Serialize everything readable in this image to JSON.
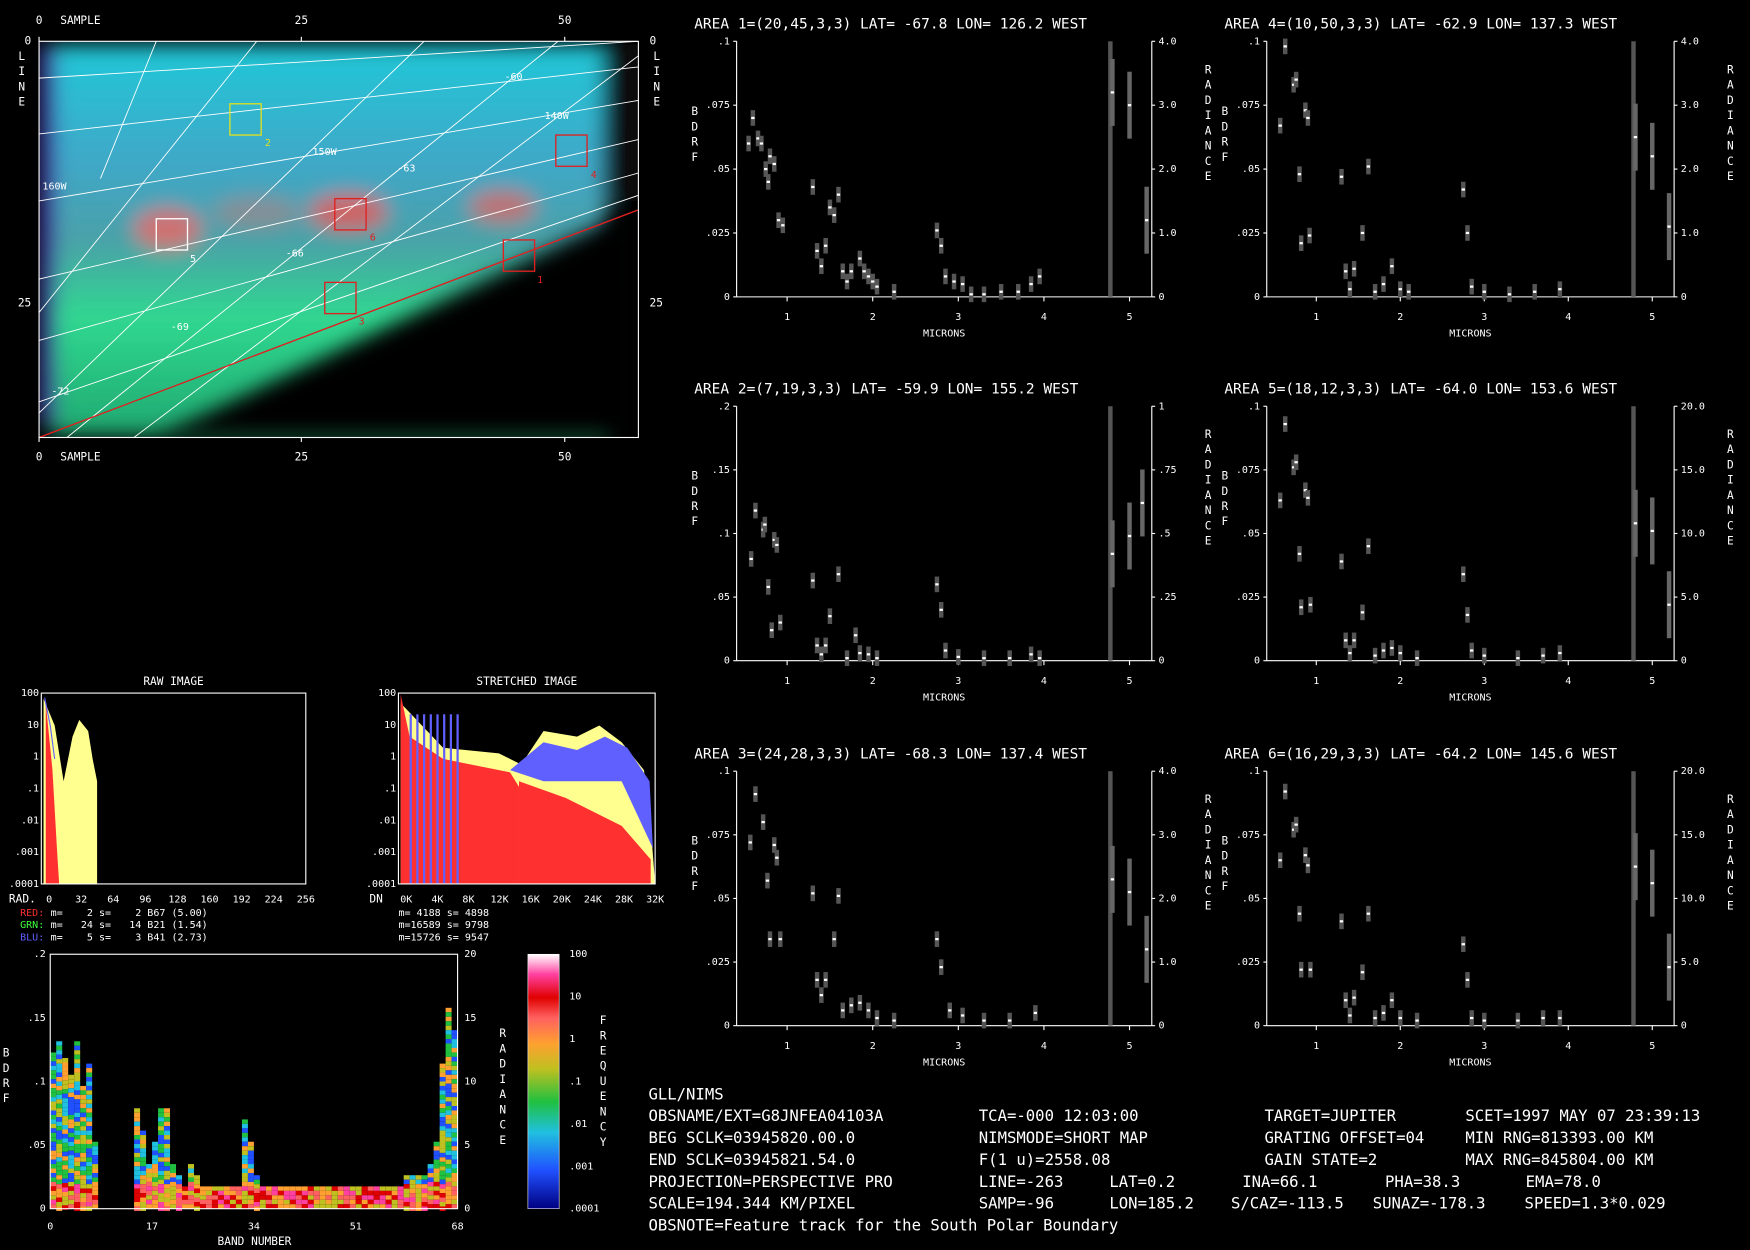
{
  "image_panel": {
    "axis_top": "SAMPLE",
    "axis_bottom": "SAMPLE",
    "sample_ticks": [
      "0",
      "25",
      "50"
    ],
    "line_label": "LINE",
    "line_ticks": [
      "0",
      "25"
    ],
    "map_labels": [
      "-60",
      "140W",
      "150W",
      "-63",
      "160W",
      "-66",
      "-69",
      "-72"
    ],
    "boxes": [
      "1",
      "2",
      "3",
      "4",
      "5",
      "6"
    ]
  },
  "histograms": [
    {
      "title": "RAW IMAGE",
      "y_ticks": [
        "100",
        "10",
        "1",
        ".1",
        ".01",
        ".001",
        ".0001"
      ],
      "x_label": "RAD.",
      "x_ticks": [
        "0",
        "32",
        "64",
        "96",
        "128",
        "160",
        "192",
        "224",
        "256"
      ],
      "stats": [
        {
          "channel": "RED:",
          "text": " m=    2 s=    2 B67 (5.00)"
        },
        {
          "channel": "GRN:",
          "text": " m=   24 s=   14 B21 (1.54)"
        },
        {
          "channel": "BLU:",
          "text": " m=    5 s=    3 B41 (2.73)"
        }
      ]
    },
    {
      "title": "STRETCHED IMAGE",
      "y_ticks": [
        "100",
        "10",
        "1",
        ".1",
        ".01",
        ".001",
        ".0001"
      ],
      "x_label": "DN",
      "x_ticks": [
        "0K",
        "4K",
        "8K",
        "12K",
        "16K",
        "20K",
        "24K",
        "28K",
        "32K"
      ],
      "stats": [
        {
          "channel": "",
          "text": "m= 4188 s= 4898"
        },
        {
          "channel": "",
          "text": "m=16589 s= 9798"
        },
        {
          "channel": "",
          "text": "m=15726 s= 9547"
        }
      ]
    }
  ],
  "band_plot": {
    "y_label": "BDRF",
    "y2_label": "RADIANCE",
    "x_label": "BAND NUMBER",
    "y_ticks": [
      ".2",
      ".15",
      ".1",
      ".05",
      "0"
    ],
    "y2_ticks": [
      "20",
      "15",
      "10",
      "5",
      "0"
    ],
    "x_ticks": [
      "0",
      "17",
      "34",
      "51",
      "68"
    ],
    "colorbar_ticks": [
      "100",
      "10",
      "1",
      ".1",
      ".01",
      ".001",
      ".0001"
    ],
    "colorbar_label": "FREQUENCY"
  },
  "areas": [
    {
      "title": "AREA 1=(20,45,3,3) LAT= -67.8 LON= 126.2 WEST",
      "y_ticks": [
        ".1",
        ".075",
        ".05",
        ".025",
        "0"
      ],
      "y2_ticks": [
        "4.0",
        "3.0",
        "2.0",
        "1.0",
        "0"
      ],
      "ylim": [
        0,
        0.1
      ],
      "y2lim": [
        0,
        4
      ],
      "points": [
        [
          0.55,
          0.06
        ],
        [
          0.6,
          0.07
        ],
        [
          0.66,
          0.062
        ],
        [
          0.7,
          0.06
        ],
        [
          0.75,
          0.05
        ],
        [
          0.78,
          0.045
        ],
        [
          0.8,
          0.055
        ],
        [
          0.85,
          0.052
        ],
        [
          0.9,
          0.03
        ],
        [
          0.95,
          0.028
        ],
        [
          1.3,
          0.043
        ],
        [
          1.35,
          0.018
        ],
        [
          1.4,
          0.012
        ],
        [
          1.45,
          0.02
        ],
        [
          1.5,
          0.035
        ],
        [
          1.55,
          0.032
        ],
        [
          1.6,
          0.04
        ],
        [
          1.65,
          0.01
        ],
        [
          1.7,
          0.006
        ],
        [
          1.75,
          0.01
        ],
        [
          1.85,
          0.015
        ],
        [
          1.9,
          0.01
        ],
        [
          1.95,
          0.008
        ],
        [
          2.0,
          0.006
        ],
        [
          2.05,
          0.004
        ],
        [
          2.25,
          0.002
        ],
        [
          2.75,
          0.026
        ],
        [
          2.8,
          0.02
        ],
        [
          2.85,
          0.008
        ],
        [
          2.95,
          0.006
        ],
        [
          3.05,
          0.005
        ],
        [
          3.15,
          0.001
        ],
        [
          3.3,
          0.001
        ],
        [
          3.5,
          0.002
        ],
        [
          3.7,
          0.002
        ],
        [
          3.85,
          0.005
        ],
        [
          3.95,
          0.008
        ]
      ],
      "radiance": [
        [
          4.8,
          3.2
        ],
        [
          5.0,
          3.0
        ],
        [
          5.2,
          1.2
        ]
      ]
    },
    {
      "title": "AREA 2=(7,19,3,3) LAT= -59.9 LON= 155.2 WEST",
      "y_ticks": [
        ".2",
        ".15",
        ".1",
        ".05",
        "0"
      ],
      "y2_ticks": [
        "1",
        ".75",
        ".5",
        ".25",
        "0"
      ],
      "ylim": [
        0,
        0.2
      ],
      "y2lim": [
        0,
        1
      ],
      "points": [
        [
          0.58,
          0.08
        ],
        [
          0.63,
          0.118
        ],
        [
          0.72,
          0.103
        ],
        [
          0.74,
          0.107
        ],
        [
          0.78,
          0.058
        ],
        [
          0.82,
          0.024
        ],
        [
          0.85,
          0.095
        ],
        [
          0.88,
          0.091
        ],
        [
          0.92,
          0.03
        ],
        [
          1.3,
          0.063
        ],
        [
          1.35,
          0.012
        ],
        [
          1.4,
          0.005
        ],
        [
          1.45,
          0.012
        ],
        [
          1.5,
          0.035
        ],
        [
          1.6,
          0.068
        ],
        [
          1.7,
          0.002
        ],
        [
          1.8,
          0.02
        ],
        [
          1.85,
          0.006
        ],
        [
          1.95,
          0.005
        ],
        [
          2.05,
          0.002
        ],
        [
          2.75,
          0.06
        ],
        [
          2.8,
          0.04
        ],
        [
          2.85,
          0.008
        ],
        [
          3.0,
          0.003
        ],
        [
          3.3,
          0.002
        ],
        [
          3.6,
          0.002
        ],
        [
          3.85,
          0.005
        ],
        [
          3.95,
          0.002
        ]
      ],
      "radiance": [
        [
          4.8,
          0.42
        ],
        [
          5.0,
          0.49
        ],
        [
          5.15,
          0.62
        ]
      ]
    },
    {
      "title": "AREA 3=(24,28,3,3) LAT= -68.3 LON= 137.4 WEST",
      "y_ticks": [
        ".1",
        ".075",
        ".05",
        ".025",
        "0"
      ],
      "y2_ticks": [
        "4.0",
        "3.0",
        "2.0",
        "1.0",
        "0"
      ],
      "ylim": [
        0,
        0.1
      ],
      "y2lim": [
        0,
        4
      ],
      "points": [
        [
          0.57,
          0.072
        ],
        [
          0.63,
          0.091
        ],
        [
          0.72,
          0.08
        ],
        [
          0.77,
          0.057
        ],
        [
          0.8,
          0.034
        ],
        [
          0.85,
          0.071
        ],
        [
          0.88,
          0.066
        ],
        [
          0.92,
          0.034
        ],
        [
          1.3,
          0.052
        ],
        [
          1.35,
          0.018
        ],
        [
          1.4,
          0.012
        ],
        [
          1.45,
          0.018
        ],
        [
          1.55,
          0.034
        ],
        [
          1.6,
          0.051
        ],
        [
          1.65,
          0.006
        ],
        [
          1.75,
          0.008
        ],
        [
          1.85,
          0.009
        ],
        [
          1.95,
          0.006
        ],
        [
          2.05,
          0.003
        ],
        [
          2.25,
          0.002
        ],
        [
          2.75,
          0.034
        ],
        [
          2.8,
          0.023
        ],
        [
          2.9,
          0.006
        ],
        [
          3.05,
          0.004
        ],
        [
          3.3,
          0.002
        ],
        [
          3.6,
          0.002
        ],
        [
          3.9,
          0.005
        ]
      ],
      "radiance": [
        [
          4.8,
          2.3
        ],
        [
          5.0,
          2.1
        ],
        [
          5.2,
          1.2
        ]
      ]
    },
    {
      "title": "AREA 4=(10,50,3,3) LAT= -62.9 LON= 137.3 WEST",
      "y_ticks": [
        ".1",
        ".075",
        ".05",
        ".025",
        "0"
      ],
      "y2_ticks": [
        "4.0",
        "3.0",
        "2.0",
        "1.0",
        "0"
      ],
      "ylim": [
        0,
        0.1
      ],
      "y2lim": [
        0,
        4
      ],
      "points": [
        [
          0.57,
          0.067
        ],
        [
          0.63,
          0.098
        ],
        [
          0.73,
          0.083
        ],
        [
          0.76,
          0.085
        ],
        [
          0.8,
          0.048
        ],
        [
          0.82,
          0.021
        ],
        [
          0.87,
          0.073
        ],
        [
          0.9,
          0.07
        ],
        [
          0.92,
          0.024
        ],
        [
          1.3,
          0.047
        ],
        [
          1.35,
          0.01
        ],
        [
          1.4,
          0.003
        ],
        [
          1.45,
          0.011
        ],
        [
          1.55,
          0.025
        ],
        [
          1.62,
          0.051
        ],
        [
          1.7,
          0.002
        ],
        [
          1.8,
          0.005
        ],
        [
          1.9,
          0.012
        ],
        [
          2.0,
          0.003
        ],
        [
          2.1,
          0.002
        ],
        [
          2.75,
          0.042
        ],
        [
          2.8,
          0.025
        ],
        [
          2.85,
          0.004
        ],
        [
          3.0,
          0.002
        ],
        [
          3.3,
          0.001
        ],
        [
          3.6,
          0.002
        ],
        [
          3.9,
          0.003
        ]
      ],
      "radiance": [
        [
          4.8,
          2.5
        ],
        [
          5.0,
          2.2
        ],
        [
          5.2,
          1.1
        ]
      ]
    },
    {
      "title": "AREA 5=(18,12,3,3) LAT= -64.0 LON= 153.6 WEST",
      "y_ticks": [
        ".1",
        ".075",
        ".05",
        ".025",
        "0"
      ],
      "y2_ticks": [
        "20.0",
        "15.0",
        "10.0",
        "5.0",
        "0"
      ],
      "ylim": [
        0,
        0.1
      ],
      "y2lim": [
        0,
        20
      ],
      "points": [
        [
          0.57,
          0.063
        ],
        [
          0.63,
          0.093
        ],
        [
          0.73,
          0.076
        ],
        [
          0.76,
          0.078
        ],
        [
          0.8,
          0.042
        ],
        [
          0.82,
          0.021
        ],
        [
          0.87,
          0.067
        ],
        [
          0.9,
          0.064
        ],
        [
          0.93,
          0.022
        ],
        [
          1.3,
          0.039
        ],
        [
          1.35,
          0.008
        ],
        [
          1.4,
          0.003
        ],
        [
          1.45,
          0.008
        ],
        [
          1.55,
          0.019
        ],
        [
          1.62,
          0.045
        ],
        [
          1.7,
          0.002
        ],
        [
          1.8,
          0.004
        ],
        [
          1.9,
          0.005
        ],
        [
          2.0,
          0.003
        ],
        [
          2.2,
          0.001
        ],
        [
          2.75,
          0.034
        ],
        [
          2.8,
          0.018
        ],
        [
          2.85,
          0.004
        ],
        [
          3.0,
          0.002
        ],
        [
          3.4,
          0.001
        ],
        [
          3.7,
          0.002
        ],
        [
          3.9,
          0.003
        ]
      ],
      "radiance": [
        [
          4.8,
          10.8
        ],
        [
          5.0,
          10.2
        ],
        [
          5.2,
          4.4
        ]
      ]
    },
    {
      "title": "AREA 6=(16,29,3,3) LAT= -64.2 LON= 145.6 WEST",
      "y_ticks": [
        ".1",
        ".075",
        ".05",
        ".025",
        "0"
      ],
      "y2_ticks": [
        "20.0",
        "15.0",
        "10.0",
        "5.0",
        "0"
      ],
      "ylim": [
        0,
        0.1
      ],
      "y2lim": [
        0,
        20
      ],
      "points": [
        [
          0.57,
          0.065
        ],
        [
          0.63,
          0.092
        ],
        [
          0.73,
          0.077
        ],
        [
          0.76,
          0.079
        ],
        [
          0.8,
          0.044
        ],
        [
          0.82,
          0.022
        ],
        [
          0.87,
          0.067
        ],
        [
          0.9,
          0.063
        ],
        [
          0.93,
          0.022
        ],
        [
          1.3,
          0.041
        ],
        [
          1.35,
          0.01
        ],
        [
          1.4,
          0.004
        ],
        [
          1.45,
          0.011
        ],
        [
          1.55,
          0.021
        ],
        [
          1.62,
          0.044
        ],
        [
          1.7,
          0.003
        ],
        [
          1.8,
          0.005
        ],
        [
          1.9,
          0.01
        ],
        [
          2.0,
          0.003
        ],
        [
          2.2,
          0.002
        ],
        [
          2.75,
          0.032
        ],
        [
          2.8,
          0.018
        ],
        [
          2.85,
          0.003
        ],
        [
          3.0,
          0.002
        ],
        [
          3.4,
          0.002
        ],
        [
          3.7,
          0.003
        ],
        [
          3.9,
          0.003
        ]
      ],
      "radiance": [
        [
          4.8,
          12.5
        ],
        [
          5.0,
          11.2
        ],
        [
          5.2,
          4.6
        ]
      ]
    }
  ],
  "area_axes": {
    "x_ticks": [
      "1",
      "2",
      "3",
      "4",
      "5"
    ],
    "xlim": [
      0.41,
      5.26
    ],
    "x_label": "MICRONS",
    "y_label": "BDRF",
    "y2_label": "RADIANCE"
  },
  "info": [
    [
      "GLL/NIMS"
    ],
    [
      "OBSNAME/EXT=G8JNFEA04103A",
      "TCA=-000 12:03:00",
      "TARGET=JUPITER",
      "SCET=1997 MAY 07 23:39:13"
    ],
    [
      "BEG SCLK=03945820.00.0",
      "NIMSMODE=SHORT MAP",
      "GRATING OFFSET=04",
      "MIN RNG=813393.00 KM"
    ],
    [
      "END SCLK=03945821.54.0",
      "F(1 u)=2558.08",
      "GAIN STATE=2",
      "MAX RNG=845804.00 KM"
    ],
    [
      "PROJECTION=PERSPECTIVE PRO",
      "LINE=-263",
      "LAT=0.2",
      "INA=66.1",
      "PHA=38.3",
      "EMA=78.0"
    ],
    [
      "SCALE=194.344 KM/PIXEL",
      "SAMP=-96",
      "LON=185.2",
      "S/CAZ=-113.5",
      "SUNAZ=-178.3",
      "SPEED=1.3*0.029"
    ],
    [
      "OBSNOTE=Feature track for the South Polar Boundary"
    ]
  ]
}
